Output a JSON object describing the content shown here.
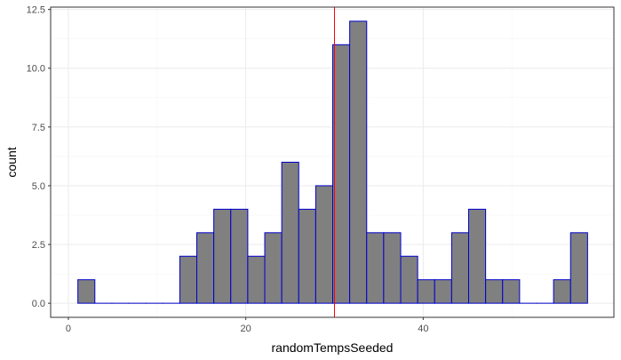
{
  "chart_data": {
    "type": "bar",
    "subtype": "histogram",
    "title": "",
    "xlabel": "randomTempsSeeded",
    "ylabel": "count",
    "bin_width": 1.9154,
    "bins": [
      {
        "x0": 1.07,
        "x1": 2.985,
        "count": 1
      },
      {
        "x0": 2.985,
        "x1": 4.9,
        "count": 0
      },
      {
        "x0": 4.9,
        "x1": 6.816,
        "count": 0
      },
      {
        "x0": 6.816,
        "x1": 8.731,
        "count": 0
      },
      {
        "x0": 8.731,
        "x1": 10.647,
        "count": 0
      },
      {
        "x0": 10.647,
        "x1": 12.562,
        "count": 0
      },
      {
        "x0": 12.562,
        "x1": 14.477,
        "count": 2
      },
      {
        "x0": 14.477,
        "x1": 16.393,
        "count": 3
      },
      {
        "x0": 16.393,
        "x1": 18.308,
        "count": 4
      },
      {
        "x0": 18.308,
        "x1": 20.224,
        "count": 4
      },
      {
        "x0": 20.224,
        "x1": 22.139,
        "count": 2
      },
      {
        "x0": 22.139,
        "x1": 24.055,
        "count": 3
      },
      {
        "x0": 24.055,
        "x1": 25.97,
        "count": 6
      },
      {
        "x0": 25.97,
        "x1": 27.885,
        "count": 4
      },
      {
        "x0": 27.885,
        "x1": 29.801,
        "count": 5
      },
      {
        "x0": 29.801,
        "x1": 31.716,
        "count": 11
      },
      {
        "x0": 31.716,
        "x1": 33.632,
        "count": 12
      },
      {
        "x0": 33.632,
        "x1": 35.547,
        "count": 3
      },
      {
        "x0": 35.547,
        "x1": 37.462,
        "count": 3
      },
      {
        "x0": 37.462,
        "x1": 39.378,
        "count": 2
      },
      {
        "x0": 39.378,
        "x1": 41.293,
        "count": 1
      },
      {
        "x0": 41.293,
        "x1": 43.209,
        "count": 1
      },
      {
        "x0": 43.209,
        "x1": 45.124,
        "count": 3
      },
      {
        "x0": 45.124,
        "x1": 47.04,
        "count": 4
      },
      {
        "x0": 47.04,
        "x1": 48.955,
        "count": 1
      },
      {
        "x0": 48.955,
        "x1": 50.87,
        "count": 1
      },
      {
        "x0": 50.87,
        "x1": 52.786,
        "count": 0
      },
      {
        "x0": 52.786,
        "x1": 54.701,
        "count": 0
      },
      {
        "x0": 54.701,
        "x1": 56.617,
        "count": 1
      },
      {
        "x0": 56.617,
        "x1": 58.532,
        "count": 3
      }
    ],
    "reference_line": {
      "x": 30.0,
      "color": "#ff0000"
    },
    "xlim": [
      -2,
      61.5
    ],
    "ylim": [
      -0.6,
      12.6
    ],
    "x_ticks": [
      0,
      20,
      40
    ],
    "x_tick_labels": [
      "0",
      "20",
      "40"
    ],
    "y_ticks": [
      0,
      2.5,
      5,
      7.5,
      10,
      12.5
    ],
    "y_tick_labels": [
      "0.0",
      "2.5",
      "5.0",
      "7.5",
      "10.0",
      "12.5"
    ],
    "grid": true,
    "legend": "none",
    "colors": {
      "bar_fill": "#808080",
      "bar_stroke": "#0000cd",
      "grid_major": "#ebebeb",
      "grid_minor": "#f5f5f5",
      "panel_border": "#333333",
      "background": "#ffffff"
    }
  }
}
